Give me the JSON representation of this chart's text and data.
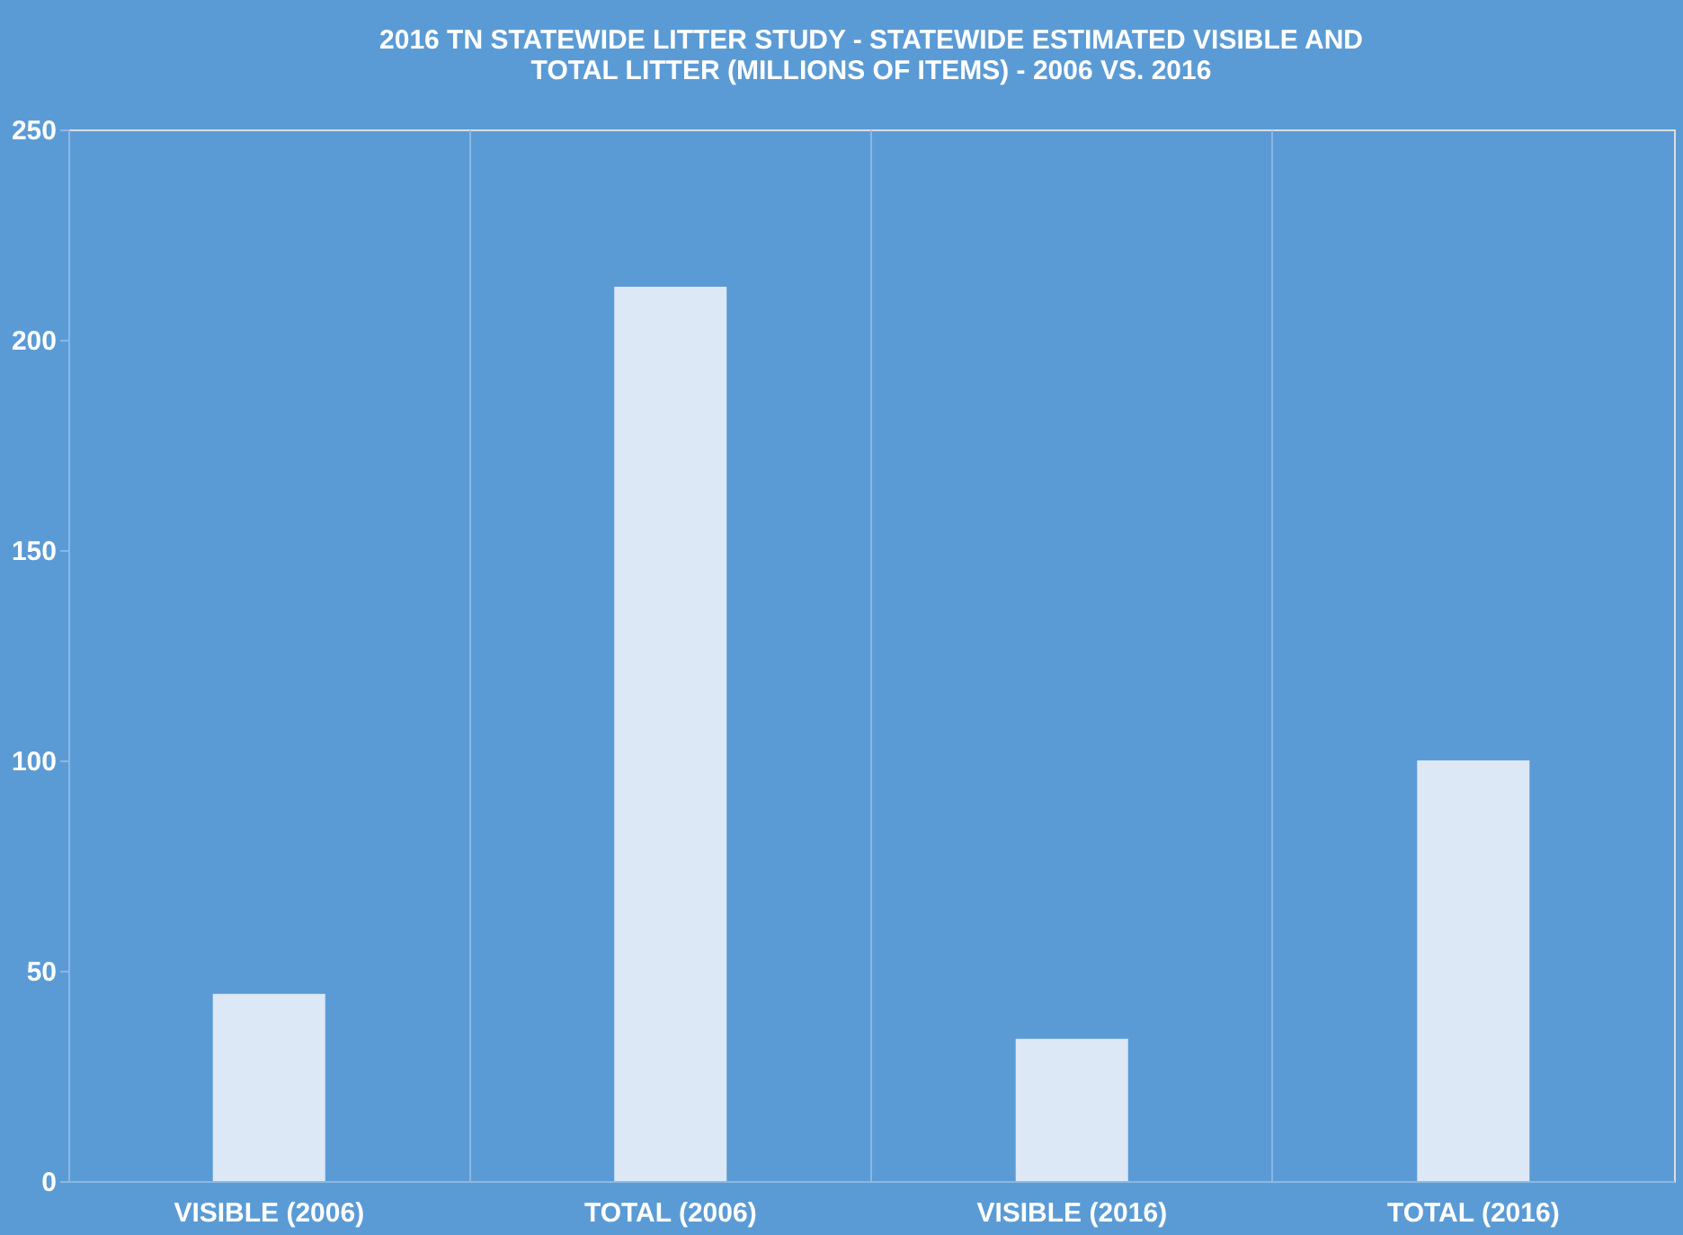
{
  "chart_data": {
    "type": "bar",
    "title": [
      "2016 TN STATEWIDE LITTER STUDY - STATEWIDE ESTIMATED VISIBLE AND",
      "TOTAL LITTER (MILLIONS OF ITEMS) - 2006 VS. 2016"
    ],
    "categories": [
      "VISIBLE (2006)",
      "TOTAL (2006)",
      "VISIBLE (2016)",
      "TOTAL (2016)"
    ],
    "values": [
      44.5,
      212.6,
      33.8,
      100
    ],
    "color": "#dce8f5",
    "ylim": [
      0,
      250
    ],
    "yticks": [
      0,
      50,
      100,
      150,
      200,
      250
    ],
    "grid": "x"
  }
}
